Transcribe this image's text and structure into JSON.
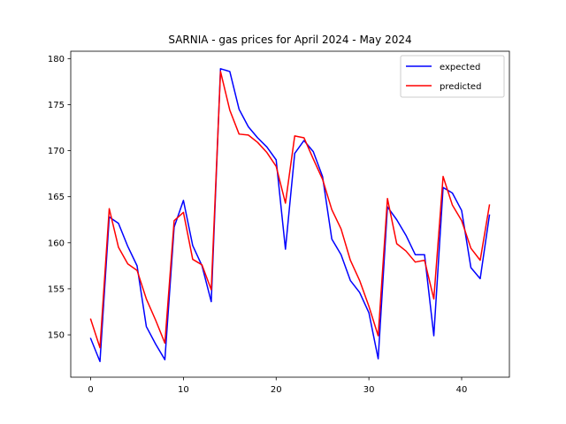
{
  "chart_data": {
    "type": "line",
    "title": "SARNIA - gas prices for April 2024 - May 2024",
    "xlabel": "",
    "ylabel": "",
    "xlim": [
      -2.15,
      45.15
    ],
    "ylim": [
      145.4,
      180.8
    ],
    "xticks": [
      0,
      10,
      20,
      30,
      40
    ],
    "yticks": [
      150,
      155,
      160,
      165,
      170,
      175,
      180
    ],
    "grid": false,
    "legend_position": "top-right",
    "series": [
      {
        "name": "expected",
        "color": "#0000ff",
        "values": [
          149.6,
          147.1,
          162.8,
          162.1,
          159.6,
          157.5,
          150.9,
          149.0,
          147.3,
          161.7,
          164.6,
          159.7,
          157.5,
          153.6,
          178.9,
          178.6,
          174.5,
          172.6,
          171.4,
          170.4,
          169.0,
          159.3,
          169.7,
          171.1,
          169.9,
          167.2,
          160.4,
          158.7,
          155.9,
          154.6,
          152.4,
          147.4,
          163.9,
          162.5,
          160.8,
          158.7,
          158.7,
          149.9,
          166.0,
          165.4,
          163.5,
          157.3,
          156.1,
          163.0
        ]
      },
      {
        "name": "predicted",
        "color": "#ff0000",
        "values": [
          151.7,
          148.6,
          163.7,
          159.5,
          157.7,
          157.0,
          153.9,
          151.6,
          149.1,
          162.4,
          163.3,
          158.2,
          157.6,
          154.9,
          178.6,
          174.4,
          171.8,
          171.7,
          170.9,
          169.8,
          168.3,
          164.3,
          171.6,
          171.4,
          169.1,
          166.9,
          163.6,
          161.5,
          158.1,
          155.9,
          153.1,
          149.9,
          164.8,
          159.9,
          159.1,
          157.9,
          158.1,
          153.9,
          167.2,
          164.1,
          162.4,
          159.4,
          158.1,
          164.1
        ]
      }
    ]
  }
}
